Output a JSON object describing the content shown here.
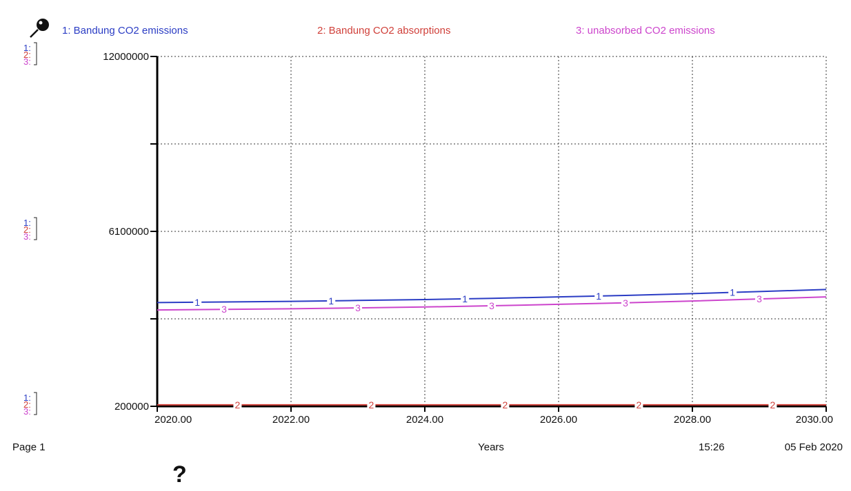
{
  "legend": [
    {
      "label": "1: Bandung CO2 emissions",
      "color": "#2a3cc4"
    },
    {
      "label": "2: Bandung CO2 absorptions",
      "color": "#d0403a"
    },
    {
      "label": "3: unabsorbed CO2 emissions",
      "color": "#cc44cc"
    }
  ],
  "scale_markers": [
    "1:",
    "2:",
    "3:"
  ],
  "y_ticks": [
    "12000000",
    "6100000",
    "200000"
  ],
  "x_ticks": [
    "2020.00",
    "2022.00",
    "2024.00",
    "2026.00",
    "2028.00",
    "2030.00"
  ],
  "xlabel": "Years",
  "page_label": "Page 1",
  "time": "15:26",
  "date": "05 Feb 2020",
  "help_symbol": "?",
  "icons": {
    "pin": "pin-icon"
  },
  "chart_data": {
    "type": "line",
    "xlabel": "Years",
    "ylabel": "",
    "xlim": [
      2020,
      2030
    ],
    "ylim": [
      200000,
      12000000
    ],
    "grid": true,
    "legend_position": "top",
    "x": [
      2020,
      2021,
      2022,
      2023,
      2024,
      2025,
      2026,
      2027,
      2028,
      2029,
      2030
    ],
    "series": [
      {
        "name": "Bandung CO2 emissions",
        "marker": "1",
        "color": "#2a3cc4",
        "values": [
          3700000,
          3720000,
          3740000,
          3770000,
          3800000,
          3840000,
          3890000,
          3940000,
          4000000,
          4070000,
          4140000
        ]
      },
      {
        "name": "Bandung CO2 absorptions",
        "marker": "2",
        "color": "#d0403a",
        "values": [
          250000,
          250000,
          250000,
          250000,
          250000,
          250000,
          250000,
          250000,
          250000,
          250000,
          250000
        ]
      },
      {
        "name": "unabsorbed CO2 emissions",
        "marker": "3",
        "color": "#cc44cc",
        "values": [
          3450000,
          3470000,
          3490000,
          3520000,
          3550000,
          3590000,
          3640000,
          3690000,
          3750000,
          3820000,
          3890000
        ]
      }
    ]
  }
}
